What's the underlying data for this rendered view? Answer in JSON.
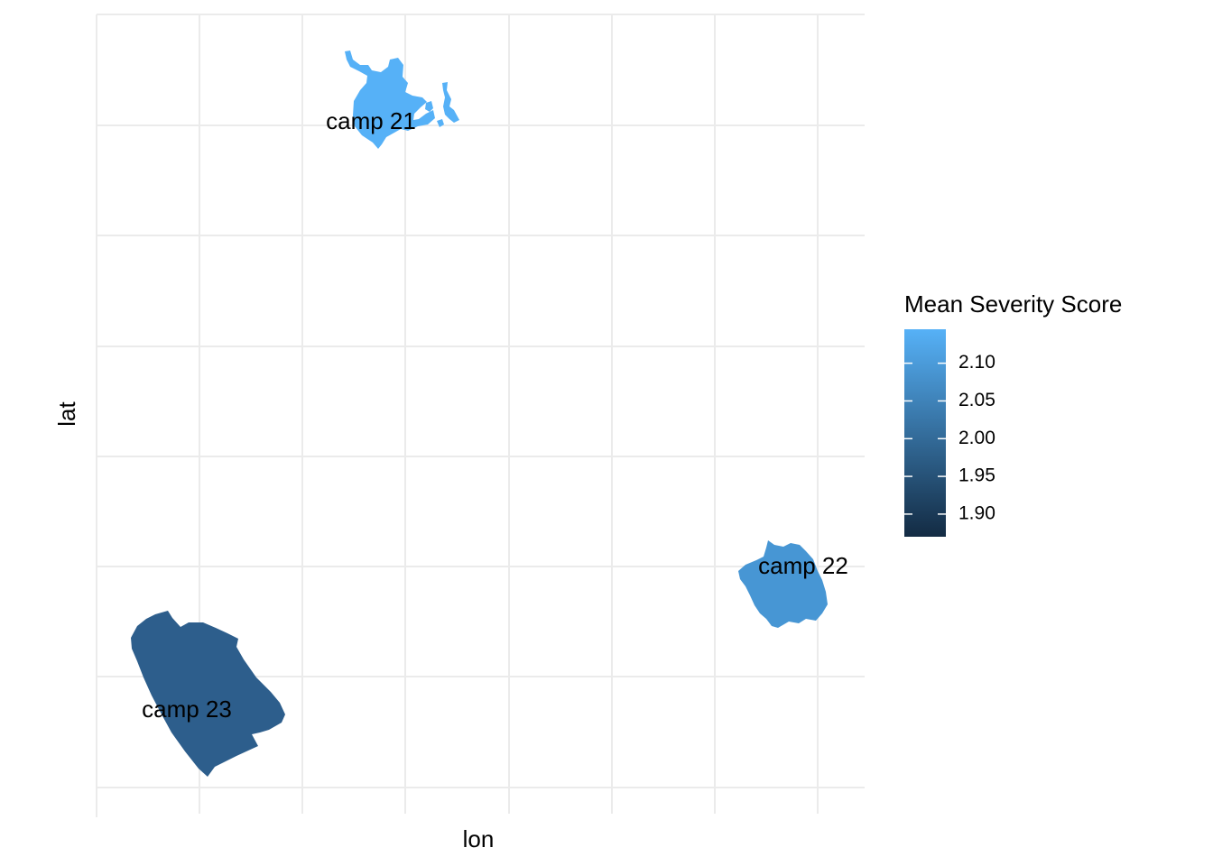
{
  "map": {
    "xlabel": "lon",
    "ylabel": "lat",
    "grid": true
  },
  "legend": {
    "title": "Mean Severity Score",
    "placement": "right",
    "scale_min": 1.87,
    "scale_max": 2.145,
    "ticks": [
      {
        "label": "2.10",
        "value": 2.1
      },
      {
        "label": "2.05",
        "value": 2.05
      },
      {
        "label": "2.00",
        "value": 2.0
      },
      {
        "label": "1.95",
        "value": 1.95
      },
      {
        "label": "1.90",
        "value": 1.9
      }
    ],
    "color_low": "#132b43",
    "color_high": "#56b1f7"
  },
  "regions": [
    {
      "name": "camp 21",
      "label": "camp 21",
      "value": 2.145,
      "fill": "#56b1f7"
    },
    {
      "name": "camp 22",
      "label": "camp 22",
      "value": 2.07,
      "fill": "#4796d4"
    },
    {
      "name": "camp 23",
      "label": "camp 23",
      "value": 2.0,
      "fill": "#2d5e8c"
    }
  ]
}
